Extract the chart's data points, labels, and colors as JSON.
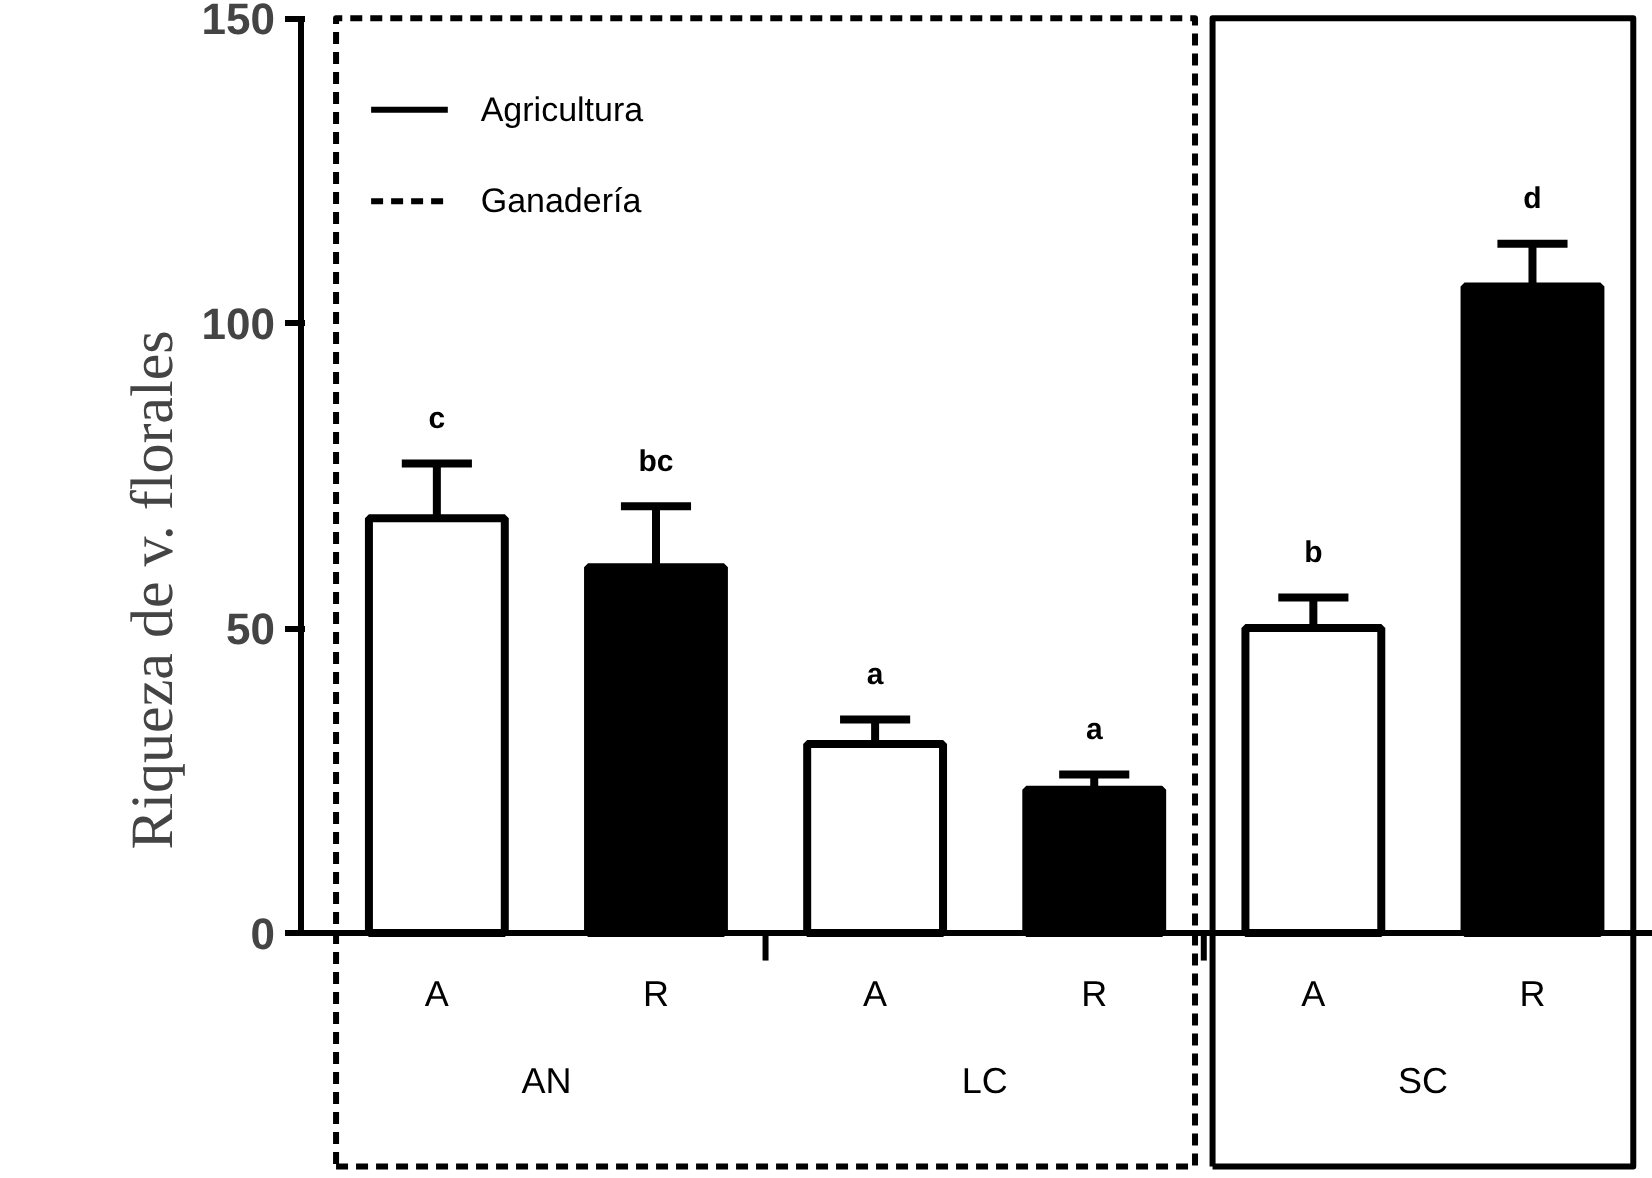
{
  "chart_data": {
    "type": "bar",
    "ylabel": "Riqueza de v. florales",
    "categories": [
      "A",
      "R",
      "A",
      "R",
      "A",
      "R"
    ],
    "values": [
      68,
      60,
      31,
      23.5,
      50,
      106
    ],
    "colors": [
      "#ffffff",
      "#000000",
      "#ffffff",
      "#000000",
      "#ffffff",
      "#000000"
    ],
    "errors": [
      [
        68,
        77
      ],
      [
        60,
        70
      ],
      [
        31,
        35
      ],
      [
        23.5,
        26
      ],
      [
        50,
        55
      ],
      [
        106,
        113
      ]
    ],
    "value_labels": [
      "c",
      "bc",
      "a",
      "a",
      "b",
      "d"
    ],
    "annotations": [
      "AN",
      "LC",
      "SC",
      "Agricultura",
      "Ganadería"
    ],
    "ylim": [
      0,
      150
    ],
    "yticks": [
      0,
      50,
      100,
      150
    ],
    "grid": false
  }
}
